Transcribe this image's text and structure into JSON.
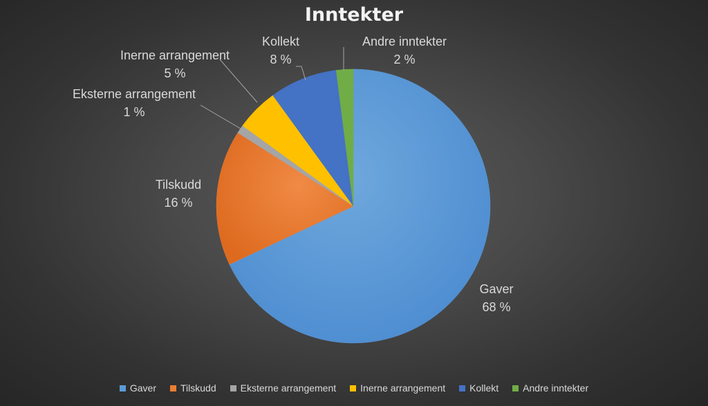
{
  "chart_data": {
    "type": "pie",
    "title": "Inntekter",
    "categories": [
      "Gaver",
      "Tilskudd",
      "Eksterne arrangement",
      "Inerne arrangement",
      "Kollekt",
      "Andre inntekter"
    ],
    "values": [
      68,
      16,
      1,
      5,
      8,
      2
    ],
    "value_labels": [
      "68 %",
      "16 %",
      "1 %",
      "5 %",
      "8 %",
      "2 %"
    ],
    "colors": [
      "#5b9bd5",
      "#ed7d31",
      "#a5a5a5",
      "#ffc000",
      "#4472c4",
      "#70ad47"
    ],
    "legend_position": "bottom",
    "start_angle": "12 o'clock",
    "direction": "clockwise"
  }
}
